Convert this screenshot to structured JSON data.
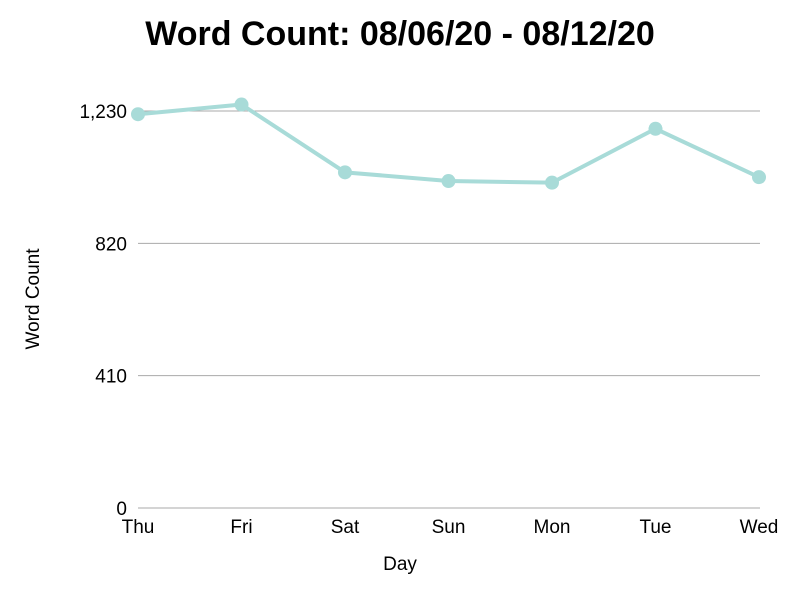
{
  "chart_data": {
    "type": "line",
    "title": "Word Count: 08/06/20 - 08/12/20",
    "xlabel": "Day",
    "ylabel": "Word Count",
    "categories": [
      "Thu",
      "Fri",
      "Sat",
      "Sun",
      "Mon",
      "Tue",
      "Wed"
    ],
    "series": [
      {
        "values": [
          1220,
          1250,
          1040,
          1013,
          1008,
          1175,
          1025
        ]
      }
    ],
    "ylim": [
      0,
      1230
    ],
    "yticks": [
      0,
      410,
      820,
      1230
    ],
    "ytick_labels": [
      "0",
      "410",
      "820",
      "1,230"
    ],
    "grid": true,
    "legend": "none",
    "colors": {
      "line": "#a8dbd8",
      "grid": "#aaaaaa"
    }
  }
}
